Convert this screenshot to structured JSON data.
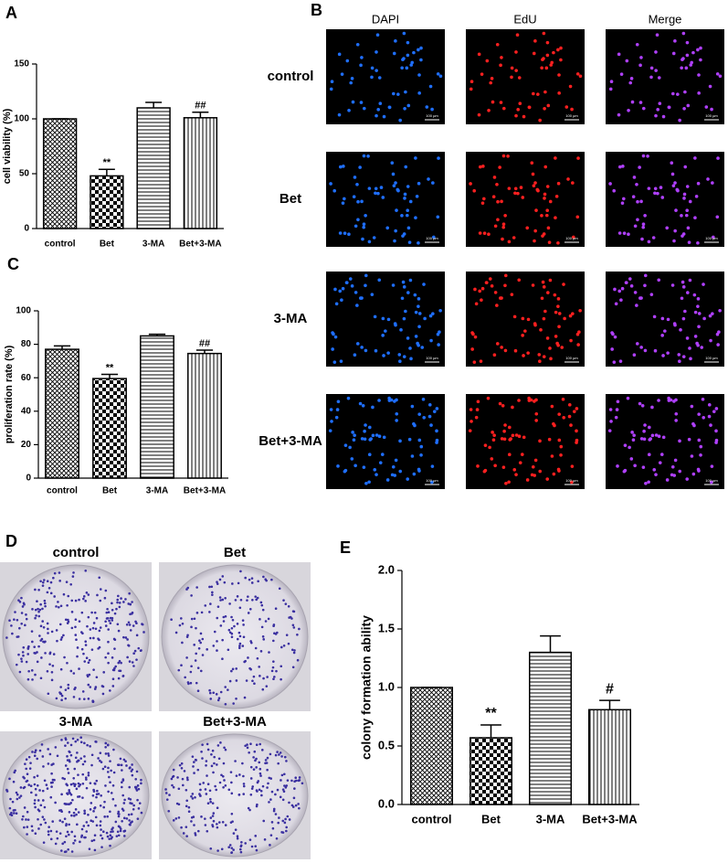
{
  "chart_data": [
    {
      "type": "bar",
      "panel": "A",
      "ylabel": "cell viability (%)",
      "categories": [
        "control",
        "Bet",
        "3-MA",
        "Bet+3-MA"
      ],
      "values": [
        100,
        48,
        110,
        101
      ],
      "errors": [
        0,
        6,
        5,
        5
      ],
      "annotations": [
        null,
        "**",
        null,
        "##"
      ],
      "patterns": [
        "crosshatch",
        "checker",
        "horizontal",
        "vertical"
      ],
      "ylim": [
        0,
        150
      ],
      "yticks": [
        0,
        50,
        100,
        150
      ]
    },
    {
      "type": "bar",
      "panel": "C",
      "ylabel": "proliferation rate (%)",
      "categories": [
        "control",
        "Bet",
        "3-MA",
        "Bet+3-MA"
      ],
      "values": [
        77,
        59.5,
        85,
        74.5
      ],
      "errors": [
        2,
        2.5,
        1,
        2
      ],
      "annotations": [
        null,
        "**",
        null,
        "##"
      ],
      "patterns": [
        "crosshatch",
        "checker",
        "horizontal",
        "vertical"
      ],
      "ylim": [
        0,
        100
      ],
      "yticks": [
        0,
        20,
        40,
        60,
        80,
        100
      ]
    },
    {
      "type": "bar",
      "panel": "E",
      "ylabel": "colony formation ability",
      "categories": [
        "control",
        "Bet",
        "3-MA",
        "Bet+3-MA"
      ],
      "values": [
        1.0,
        0.57,
        1.3,
        0.81
      ],
      "errors": [
        0,
        0.11,
        0.14,
        0.08
      ],
      "annotations": [
        null,
        "**",
        null,
        "#"
      ],
      "patterns": [
        "crosshatch",
        "checker",
        "horizontal",
        "vertical"
      ],
      "ylim": [
        0,
        2.0
      ],
      "yticks": [
        {
          "value": 0,
          "label": "0.0"
        },
        0.5,
        {
          "value": 1,
          "label": "1.0"
        },
        1.5,
        {
          "value": 2,
          "label": "2.0"
        }
      ]
    }
  ],
  "microscopy": {
    "panel": "B",
    "columns": [
      "DAPI",
      "EdU",
      "Merge"
    ],
    "column_colors": [
      "#1f6fff",
      "#ff2020",
      "#b040ff"
    ],
    "rows": [
      "control",
      "Bet",
      "3-MA",
      "Bet+3-MA"
    ],
    "scale_bar": "100 µm"
  },
  "colony": {
    "panel": "D",
    "plates": [
      "control",
      "Bet",
      "3-MA",
      "Bet+3-MA"
    ]
  }
}
